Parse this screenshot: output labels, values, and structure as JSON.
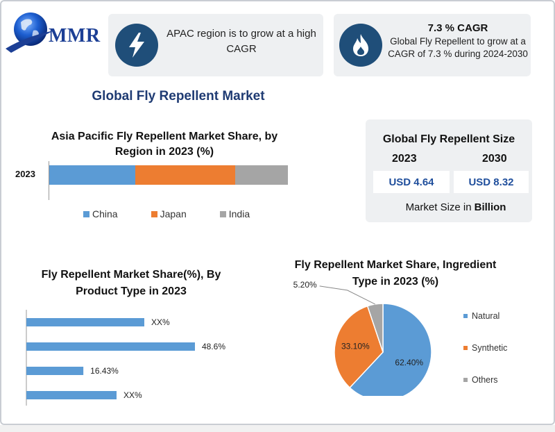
{
  "brand": {
    "logo_text": "MMR"
  },
  "cards": {
    "apac": {
      "text": "APAC region is to grow at a high CAGR",
      "icon": "lightning-icon"
    },
    "cagr": {
      "title": "7.3 % CAGR",
      "text": "Global Fly Repellent to grow at a CAGR of 7.3 % during 2024-2030",
      "icon": "fire-icon"
    }
  },
  "main_title": "Global Fly Repellent Market",
  "size_box": {
    "title": "Global Fly Repellent Size",
    "year_2023": "2023",
    "year_2030": "2030",
    "value_2023": "USD 4.64",
    "value_2030": "USD 8.32",
    "unit_prefix": "Market Size in",
    "unit_bold": "Billion"
  },
  "colors": {
    "blue": "#5b9bd5",
    "orange": "#ed7d31",
    "gray": "#a5a5a5",
    "navy": "#1f4e79",
    "title_navy": "#1f3b73"
  },
  "chart_data": [
    {
      "type": "bar",
      "stacked": true,
      "orientation": "horizontal",
      "title": "Asia Pacific Fly Repellent Market Share, by Region in 2023 (%)",
      "categories": [
        "2023"
      ],
      "series": [
        {
          "name": "China",
          "values": [
            36
          ],
          "color": "#5b9bd5"
        },
        {
          "name": "Japan",
          "values": [
            42
          ],
          "color": "#ed7d31"
        },
        {
          "name": "India",
          "values": [
            22
          ],
          "color": "#a5a5a5"
        }
      ],
      "legend": "bottom"
    },
    {
      "type": "bar",
      "orientation": "horizontal",
      "title": "Fly Repellent Market Share(%), By Product Type in 2023",
      "values": [
        34,
        48.6,
        16.43,
        26
      ],
      "labels": [
        "XX%",
        "48.6%",
        "16.43%",
        "XX%"
      ],
      "color": "#5b9bd5",
      "xlim": [
        0,
        60
      ]
    },
    {
      "type": "pie",
      "title": "Fly Repellent Market Share, Ingredient Type in 2023 (%)",
      "slices": [
        {
          "name": "Natural",
          "value": 62.4,
          "label": "62.40%",
          "color": "#5b9bd5"
        },
        {
          "name": "Synthetic",
          "value": 33.1,
          "label": "33.10%",
          "color": "#ed7d31"
        },
        {
          "name": "Others",
          "value": 5.2,
          "label": "5.20%",
          "color": "#a5a5a5"
        }
      ],
      "legend": "right"
    }
  ]
}
